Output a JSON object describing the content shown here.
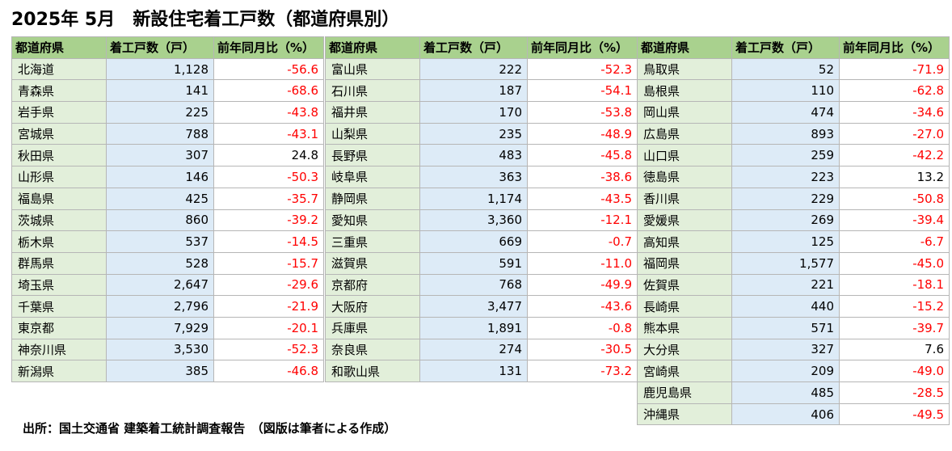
{
  "title": "2025年 5月　新設住宅着工戸数（都道府県別）",
  "source": "出所：国土交通省 建築着工統計調査報告　（図版は筆者による作成）",
  "headers": [
    "都道府県",
    "着工戸数（戸）",
    "前年同月比（%）"
  ],
  "colors": {
    "header_bg": "#a9d18e",
    "name_bg": "#e2efda",
    "number_bg": "#ddebf7",
    "negative": "#ff0000"
  },
  "tables": [
    [
      {
        "name": "北海道",
        "units": "1,128",
        "yoy": "-56.6"
      },
      {
        "name": "青森県",
        "units": "141",
        "yoy": "-68.6"
      },
      {
        "name": "岩手県",
        "units": "225",
        "yoy": "-43.8"
      },
      {
        "name": "宮城県",
        "units": "788",
        "yoy": "-43.1"
      },
      {
        "name": "秋田県",
        "units": "307",
        "yoy": "24.8"
      },
      {
        "name": "山形県",
        "units": "146",
        "yoy": "-50.3"
      },
      {
        "name": "福島県",
        "units": "425",
        "yoy": "-35.7"
      },
      {
        "name": "茨城県",
        "units": "860",
        "yoy": "-39.2"
      },
      {
        "name": "栃木県",
        "units": "537",
        "yoy": "-14.5"
      },
      {
        "name": "群馬県",
        "units": "528",
        "yoy": "-15.7"
      },
      {
        "name": "埼玉県",
        "units": "2,647",
        "yoy": "-29.6"
      },
      {
        "name": "千葉県",
        "units": "2,796",
        "yoy": "-21.9"
      },
      {
        "name": "東京都",
        "units": "7,929",
        "yoy": "-20.1"
      },
      {
        "name": "神奈川県",
        "units": "3,530",
        "yoy": "-52.3"
      },
      {
        "name": "新潟県",
        "units": "385",
        "yoy": "-46.8"
      }
    ],
    [
      {
        "name": "富山県",
        "units": "222",
        "yoy": "-52.3"
      },
      {
        "name": "石川県",
        "units": "187",
        "yoy": "-54.1"
      },
      {
        "name": "福井県",
        "units": "170",
        "yoy": "-53.8"
      },
      {
        "name": "山梨県",
        "units": "235",
        "yoy": "-48.9"
      },
      {
        "name": "長野県",
        "units": "483",
        "yoy": "-45.8"
      },
      {
        "name": "岐阜県",
        "units": "363",
        "yoy": "-38.6"
      },
      {
        "name": "静岡県",
        "units": "1,174",
        "yoy": "-43.5"
      },
      {
        "name": "愛知県",
        "units": "3,360",
        "yoy": "-12.1"
      },
      {
        "name": "三重県",
        "units": "669",
        "yoy": "-0.7"
      },
      {
        "name": "滋賀県",
        "units": "591",
        "yoy": "-11.0"
      },
      {
        "name": "京都府",
        "units": "768",
        "yoy": "-49.9"
      },
      {
        "name": "大阪府",
        "units": "3,477",
        "yoy": "-43.6"
      },
      {
        "name": "兵庫県",
        "units": "1,891",
        "yoy": "-0.8"
      },
      {
        "name": "奈良県",
        "units": "274",
        "yoy": "-30.5"
      },
      {
        "name": "和歌山県",
        "units": "131",
        "yoy": "-73.2"
      }
    ],
    [
      {
        "name": "鳥取県",
        "units": "52",
        "yoy": "-71.9"
      },
      {
        "name": "島根県",
        "units": "110",
        "yoy": "-62.8"
      },
      {
        "name": "岡山県",
        "units": "474",
        "yoy": "-34.6"
      },
      {
        "name": "広島県",
        "units": "893",
        "yoy": "-27.0"
      },
      {
        "name": "山口県",
        "units": "259",
        "yoy": "-42.2"
      },
      {
        "name": "徳島県",
        "units": "223",
        "yoy": "13.2"
      },
      {
        "name": "香川県",
        "units": "229",
        "yoy": "-50.8"
      },
      {
        "name": "愛媛県",
        "units": "269",
        "yoy": "-39.4"
      },
      {
        "name": "高知県",
        "units": "125",
        "yoy": "-6.7"
      },
      {
        "name": "福岡県",
        "units": "1,577",
        "yoy": "-45.0"
      },
      {
        "name": "佐賀県",
        "units": "221",
        "yoy": "-18.1"
      },
      {
        "name": "長崎県",
        "units": "440",
        "yoy": "-15.2"
      },
      {
        "name": "熊本県",
        "units": "571",
        "yoy": "-39.7"
      },
      {
        "name": "大分県",
        "units": "327",
        "yoy": "7.6"
      },
      {
        "name": "宮崎県",
        "units": "209",
        "yoy": "-49.0"
      },
      {
        "name": "鹿児島県",
        "units": "485",
        "yoy": "-28.5"
      },
      {
        "name": "沖縄県",
        "units": "406",
        "yoy": "-49.5"
      }
    ]
  ]
}
